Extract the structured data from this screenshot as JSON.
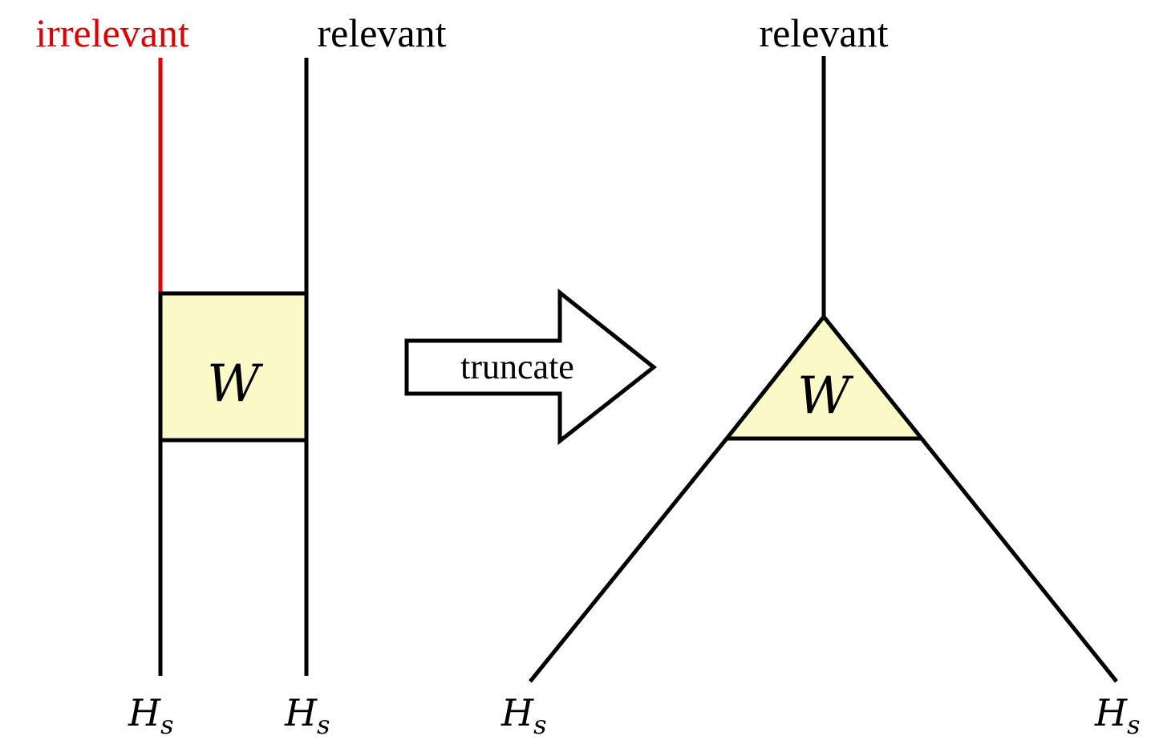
{
  "colors": {
    "line": "#000000",
    "irrelevant": "#e00000",
    "tensor_fill": "#fafac8",
    "arrow_fill": "#ffffff"
  },
  "left": {
    "top_left_label": "irrelevant",
    "top_right_label": "relevant",
    "tensor_label": "W",
    "bottom_left_main": "H",
    "bottom_left_sub": "s",
    "bottom_right_main": "H",
    "bottom_right_sub": "s"
  },
  "arrow": {
    "label": "truncate"
  },
  "right": {
    "top_label": "relevant",
    "tensor_label": "W",
    "bottom_left_main": "H",
    "bottom_left_sub": "s",
    "bottom_right_main": "H",
    "bottom_right_sub": "s"
  }
}
